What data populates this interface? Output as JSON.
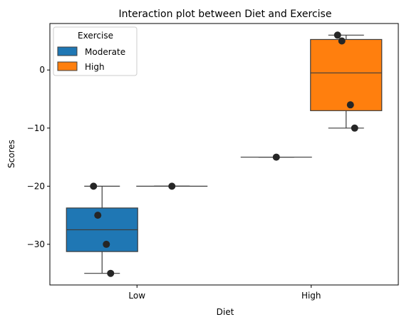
{
  "chart_data": {
    "type": "box",
    "title": "Interaction plot between Diet and Exercise",
    "xlabel": "Diet",
    "ylabel": "Scores",
    "categories": [
      "Low",
      "High"
    ],
    "ylim": [
      -37,
      8
    ],
    "yticks": [
      -30,
      -20,
      -10,
      0
    ],
    "grid": false,
    "legend": {
      "title": "Exercise",
      "position": "top-left"
    },
    "series": [
      {
        "name": "Moderate",
        "color": "#1f77b4",
        "boxes": [
          {
            "category": "Low",
            "whisker_low": -35,
            "q1": -31.25,
            "median": -27.5,
            "q3": -23.75,
            "whisker_high": -20,
            "points": [
              -20,
              -25,
              -30,
              -35
            ]
          },
          {
            "category": "High",
            "whisker_low": -15,
            "q1": -15,
            "median": -15,
            "q3": -15,
            "whisker_high": -15,
            "points": [
              -15
            ]
          }
        ]
      },
      {
        "name": "High",
        "color": "#ff7f0e",
        "boxes": [
          {
            "category": "Low",
            "whisker_low": -20,
            "q1": -20,
            "median": -20,
            "q3": -20,
            "whisker_high": -20,
            "points": [
              -20
            ]
          },
          {
            "category": "High",
            "whisker_low": -10,
            "q1": -7,
            "median": -0.5,
            "q3": 5.25,
            "whisker_high": 6,
            "points": [
              6,
              5,
              -6,
              -10
            ]
          }
        ]
      }
    ]
  }
}
